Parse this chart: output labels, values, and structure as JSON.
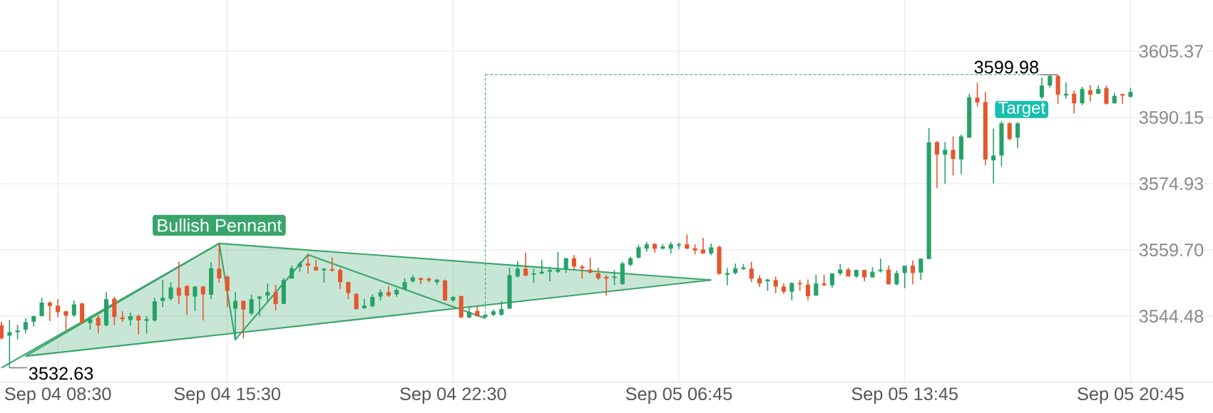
{
  "chart_data": {
    "type": "candlestick",
    "categories": [
      null,
      null,
      null,
      null,
      null,
      null,
      null,
      "Sep 04 08:30",
      null,
      null,
      null,
      null,
      null,
      null,
      null,
      null,
      null,
      null,
      null,
      null,
      null,
      null,
      null,
      null,
      null,
      null,
      null,
      null,
      "Sep 04 15:30",
      null,
      null,
      null,
      null,
      null,
      null,
      null,
      null,
      null,
      null,
      null,
      null,
      null,
      null,
      null,
      null,
      null,
      null,
      null,
      null,
      null,
      null,
      null,
      null,
      null,
      null,
      null,
      "Sep 04 22:30",
      null,
      null,
      null,
      null,
      null,
      null,
      null,
      null,
      null,
      null,
      null,
      null,
      null,
      null,
      null,
      null,
      null,
      null,
      null,
      null,
      null,
      null,
      null,
      null,
      null,
      null,
      null,
      "Sep 05 06:45",
      null,
      null,
      null,
      null,
      null,
      null,
      null,
      null,
      null,
      null,
      null,
      null,
      null,
      null,
      null,
      null,
      null,
      null,
      null,
      null,
      null,
      null,
      null,
      null,
      null,
      null,
      null,
      "Sep 05 13:45",
      null,
      null,
      null,
      null,
      null,
      null,
      null,
      null,
      null,
      null,
      null,
      null,
      null,
      null,
      null,
      null,
      null,
      null,
      null,
      null,
      null,
      null,
      null,
      null,
      null,
      null,
      null,
      "Sep 05 20:45"
    ],
    "ohlc": [
      [
        3542.4,
        3543.2,
        3539.1,
        3539.4
      ],
      [
        3540.0,
        3543.6,
        3532.63,
        3540.8
      ],
      [
        3540.8,
        3542.5,
        3539.1,
        3541.2
      ],
      [
        3541.4,
        3544.0,
        3540.5,
        3543.1
      ],
      [
        3543.2,
        3544.6,
        3542.1,
        3544.5
      ],
      [
        3544.5,
        3548.7,
        3544.5,
        3547.6
      ],
      [
        3547.6,
        3547.9,
        3543.4,
        3546.8
      ],
      [
        3546.9,
        3548.4,
        3544.3,
        3545.4
      ],
      [
        3545.6,
        3545.7,
        3541.3,
        3544.6
      ],
      [
        3544.7,
        3548.1,
        3544.3,
        3547.2
      ],
      [
        3547.4,
        3547.6,
        3542.7,
        3543.0
      ],
      [
        3542.9,
        3544.3,
        3541.4,
        3543.8
      ],
      [
        3544.1,
        3544.7,
        3540.5,
        3542.3
      ],
      [
        3542.4,
        3550.0,
        3542.1,
        3548.4
      ],
      [
        3548.5,
        3549.0,
        3542.4,
        3544.3
      ],
      [
        3544.2,
        3545.6,
        3543.2,
        3543.8
      ],
      [
        3543.6,
        3545.3,
        3542.3,
        3544.5
      ],
      [
        3544.5,
        3544.9,
        3540.3,
        3543.5
      ],
      [
        3543.5,
        3544.5,
        3540.5,
        3543.7
      ],
      [
        3543.5,
        3548.7,
        3543.2,
        3547.9
      ],
      [
        3548.0,
        3552.8,
        3546.5,
        3548.7
      ],
      [
        3548.5,
        3552.3,
        3548.1,
        3551.1
      ],
      [
        3551.0,
        3557.0,
        3547.3,
        3549.2
      ],
      [
        3551.4,
        3551.7,
        3544.7,
        3549.2
      ],
      [
        3549.0,
        3551.4,
        3545.6,
        3551.3
      ],
      [
        3551.3,
        3551.4,
        3543.5,
        3549.5
      ],
      [
        3549.4,
        3556.9,
        3548.4,
        3555.5
      ],
      [
        3555.4,
        3561.0,
        3552.2,
        3553.2
      ],
      [
        3553.6,
        3553.9,
        3546.5,
        3550.3
      ],
      [
        3546.2,
        3550.0,
        3538.9,
        3548.0
      ],
      [
        3548.0,
        3548.1,
        3539.4,
        3546.0
      ],
      [
        3545.1,
        3549.4,
        3544.7,
        3548.4
      ],
      [
        3548.5,
        3549.2,
        3544.5,
        3549.0
      ],
      [
        3549.2,
        3552.0,
        3547.6,
        3550.0
      ],
      [
        3550.0,
        3551.7,
        3545.8,
        3547.3
      ],
      [
        3547.3,
        3553.3,
        3547.3,
        3552.8
      ],
      [
        3553.1,
        3556.1,
        3553.1,
        3555.5
      ],
      [
        3555.8,
        3557.1,
        3554.7,
        3556.6
      ],
      [
        3556.6,
        3558.8,
        3554.3,
        3556.1
      ],
      [
        3555.8,
        3557.4,
        3555.0,
        3555.0
      ],
      [
        3555.0,
        3555.5,
        3552.2,
        3555.4
      ],
      [
        3555.2,
        3558.0,
        3554.7,
        3555.0
      ],
      [
        3555.1,
        3555.5,
        3550.7,
        3552.3
      ],
      [
        3552.3,
        3552.5,
        3548.4,
        3549.8
      ],
      [
        3549.6,
        3549.8,
        3546.0,
        3546.1
      ],
      [
        3546.3,
        3548.5,
        3546.2,
        3546.9
      ],
      [
        3546.8,
        3549.5,
        3546.5,
        3548.9
      ],
      [
        3549.0,
        3550.7,
        3548.1,
        3550.0
      ],
      [
        3550.0,
        3551.4,
        3548.9,
        3549.2
      ],
      [
        3549.5,
        3550.9,
        3548.9,
        3550.5
      ],
      [
        3550.7,
        3553.2,
        3550.5,
        3552.3
      ],
      [
        3552.5,
        3553.9,
        3552.2,
        3553.4
      ],
      [
        3553.2,
        3553.4,
        3551.8,
        3552.8
      ],
      [
        3553.1,
        3553.4,
        3552.2,
        3552.7
      ],
      [
        3552.3,
        3552.9,
        3551.7,
        3552.9
      ],
      [
        3552.7,
        3552.9,
        3548.0,
        3548.1
      ],
      [
        3548.1,
        3549.1,
        3547.8,
        3548.9
      ],
      [
        3549.1,
        3549.2,
        3544.0,
        3544.2
      ],
      [
        3544.2,
        3546.8,
        3544.0,
        3545.4
      ],
      [
        3545.7,
        3546.8,
        3544.3,
        3544.5
      ],
      [
        3544.3,
        3545.0,
        3544.0,
        3544.8
      ],
      [
        3544.8,
        3546.0,
        3544.5,
        3545.6
      ],
      [
        3544.8,
        3547.9,
        3544.6,
        3546.1
      ],
      [
        3546.2,
        3555.6,
        3546.2,
        3553.9
      ],
      [
        3553.6,
        3557.1,
        3553.4,
        3555.4
      ],
      [
        3555.4,
        3559.1,
        3553.6,
        3553.8
      ],
      [
        3554.0,
        3555.4,
        3552.1,
        3554.3
      ],
      [
        3554.3,
        3557.4,
        3554.1,
        3554.7
      ],
      [
        3554.7,
        3555.8,
        3552.5,
        3555.1
      ],
      [
        3554.7,
        3559.2,
        3554.4,
        3555.2
      ],
      [
        3555.2,
        3557.9,
        3554.4,
        3557.8
      ],
      [
        3557.8,
        3558.5,
        3555.2,
        3555.9
      ],
      [
        3555.9,
        3556.3,
        3553.1,
        3555.5
      ],
      [
        3555.2,
        3557.9,
        3554.3,
        3554.5
      ],
      [
        3554.3,
        3555.6,
        3552.8,
        3553.2
      ],
      [
        3553.4,
        3553.9,
        3549.2,
        3553.2
      ],
      [
        3553.3,
        3555.1,
        3551.6,
        3553.6
      ],
      [
        3551.9,
        3557.0,
        3551.7,
        3556.6
      ],
      [
        3556.3,
        3558.1,
        3555.9,
        3557.8
      ],
      [
        3557.9,
        3560.9,
        3557.8,
        3560.3
      ],
      [
        3560.0,
        3561.5,
        3559.3,
        3561.0
      ],
      [
        3561.1,
        3561.2,
        3559.1,
        3560.0
      ],
      [
        3560.0,
        3561.1,
        3559.8,
        3560.5
      ],
      [
        3560.0,
        3561.5,
        3558.9,
        3561.0
      ],
      [
        3560.7,
        3561.4,
        3559.9,
        3561.0
      ],
      [
        3561.0,
        3563.3,
        3559.9,
        3560.0
      ],
      [
        3560.1,
        3561.0,
        3558.7,
        3559.6
      ],
      [
        3559.8,
        3562.5,
        3558.8,
        3558.9
      ],
      [
        3558.9,
        3561.2,
        3558.5,
        3560.3
      ],
      [
        3560.4,
        3560.7,
        3554.0,
        3554.2
      ],
      [
        3554.0,
        3555.5,
        3551.6,
        3554.4
      ],
      [
        3554.4,
        3556.6,
        3554.1,
        3555.5
      ],
      [
        3555.4,
        3556.5,
        3555.1,
        3555.6
      ],
      [
        3555.4,
        3557.0,
        3552.3,
        3553.1
      ],
      [
        3553.2,
        3553.9,
        3551.2,
        3552.0
      ],
      [
        3552.5,
        3553.1,
        3550.3,
        3552.9
      ],
      [
        3552.8,
        3553.6,
        3549.8,
        3551.3
      ],
      [
        3551.3,
        3552.0,
        3549.6,
        3550.1
      ],
      [
        3550.1,
        3552.3,
        3548.1,
        3552.1
      ],
      [
        3552.1,
        3552.8,
        3550.3,
        3551.8
      ],
      [
        3551.7,
        3552.9,
        3548.1,
        3549.1
      ],
      [
        3549.2,
        3554.0,
        3549.2,
        3552.0
      ],
      [
        3552.0,
        3554.0,
        3551.4,
        3551.6
      ],
      [
        3551.6,
        3554.4,
        3551.0,
        3554.3
      ],
      [
        3554.3,
        3556.5,
        3553.9,
        3555.2
      ],
      [
        3555.2,
        3555.6,
        3553.6,
        3553.6
      ],
      [
        3553.6,
        3555.2,
        3553.3,
        3555.1
      ],
      [
        3555.1,
        3555.1,
        3552.5,
        3553.4
      ],
      [
        3553.4,
        3555.8,
        3553.3,
        3554.7
      ],
      [
        3554.9,
        3557.7,
        3554.5,
        3555.1
      ],
      [
        3555.2,
        3556.1,
        3551.8,
        3551.8
      ],
      [
        3551.8,
        3555.0,
        3551.6,
        3554.4
      ],
      [
        3554.4,
        3556.1,
        3550.9,
        3556.1
      ],
      [
        3556.1,
        3557.3,
        3551.8,
        3554.4
      ],
      [
        3554.5,
        3557.8,
        3552.8,
        3557.7
      ],
      [
        3557.6,
        3587.7,
        3557.6,
        3584.4
      ],
      [
        3584.5,
        3584.7,
        3573.9,
        3581.6
      ],
      [
        3581.6,
        3584.5,
        3574.9,
        3582.7
      ],
      [
        3582.7,
        3585.8,
        3576.8,
        3580.6
      ],
      [
        3580.5,
        3586.2,
        3577.1,
        3585.8
      ],
      [
        3585.5,
        3595.6,
        3585.5,
        3594.8
      ],
      [
        3594.7,
        3598.1,
        3592.7,
        3593.6
      ],
      [
        3593.7,
        3596.0,
        3579.2,
        3580.5
      ],
      [
        3580.3,
        3587.6,
        3575.0,
        3581.4
      ],
      [
        3581.4,
        3589.3,
        3578.9,
        3588.8
      ],
      [
        3588.8,
        3589.1,
        3584.9,
        3585.2
      ],
      [
        3585.5,
        3589.1,
        3583.1,
        3588.8
      ],
      null,
      null,
      [
        3594.8,
        3599.3,
        3594.4,
        3597.5
      ],
      [
        3597.5,
        3599.9,
        3597.0,
        3599.7
      ],
      [
        3599.7,
        3599.98,
        3593.3,
        3595.4
      ],
      [
        3595.2,
        3598.2,
        3594.5,
        3595.6
      ],
      [
        3595.6,
        3596.4,
        3591.1,
        3593.4
      ],
      [
        3593.4,
        3597.2,
        3593.0,
        3596.7
      ],
      [
        3596.4,
        3597.6,
        3593.8,
        3595.4
      ],
      [
        3595.6,
        3597.5,
        3595.6,
        3596.7
      ],
      [
        3596.9,
        3597.5,
        3593.1,
        3593.3
      ],
      [
        3593.4,
        3595.8,
        3593.3,
        3595.1
      ],
      [
        3595.4,
        3595.6,
        3593.3,
        3595.3
      ],
      [
        3594.9,
        3597.0,
        3594.7,
        3596.0
      ]
    ],
    "colors": [
      "#e4572e",
      "#26a269",
      "#26a269",
      "#26a269",
      "#26a269",
      "#26a269",
      "#e4572e",
      "#e4572e",
      "#e4572e",
      "#26a269",
      "#e4572e",
      "#26a269",
      "#e4572e",
      "#26a269",
      "#e4572e",
      "#e4572e",
      "#26a269",
      "#e4572e",
      "#26a269",
      "#26a269",
      "#26a269",
      "#26a269",
      "#e4572e",
      "#e4572e",
      "#26a269",
      "#e4572e",
      "#26a269",
      "#e4572e",
      "#e4572e",
      "#26a269",
      "#e4572e",
      "#26a269",
      "#26a269",
      "#26a269",
      "#e4572e",
      "#26a269",
      "#26a269",
      "#26a269",
      "#e4572e",
      "#e4572e",
      "#26a269",
      "#e4572e",
      "#e4572e",
      "#e4572e",
      "#e4572e",
      "#26a269",
      "#26a269",
      "#26a269",
      "#e4572e",
      "#26a269",
      "#26a269",
      "#26a269",
      "#e4572e",
      "#e4572e",
      "#26a269",
      "#e4572e",
      "#26a269",
      "#e4572e",
      "#26a269",
      "#e4572e",
      "#26a269",
      "#26a269",
      "#26a269",
      "#26a269",
      "#26a269",
      "#e4572e",
      "#26a269",
      "#26a269",
      "#26a269",
      "#26a269",
      "#26a269",
      "#e4572e",
      "#e4572e",
      "#e4572e",
      "#e4572e",
      "#e4572e",
      "#26a269",
      "#26a269",
      "#26a269",
      "#26a269",
      "#26a269",
      "#e4572e",
      "#26a269",
      "#26a269",
      "#26a269",
      "#e4572e",
      "#e4572e",
      "#e4572e",
      "#26a269",
      "#e4572e",
      "#26a269",
      "#26a269",
      "#26a269",
      "#e4572e",
      "#e4572e",
      "#26a269",
      "#e4572e",
      "#e4572e",
      "#26a269",
      "#e4572e",
      "#e4572e",
      "#26a269",
      "#e4572e",
      "#26a269",
      "#26a269",
      "#e4572e",
      "#26a269",
      "#e4572e",
      "#26a269",
      "#26a269",
      "#e4572e",
      "#26a269",
      "#26a269",
      "#e4572e",
      "#26a269",
      "#26a269",
      "#e4572e",
      "#26a269",
      "#e4572e",
      "#26a269",
      "#26a269",
      "#e4572e",
      "#e4572e",
      "#26a269",
      "#26a269",
      "#e4572e",
      "#26a269",
      null,
      null,
      "#26a269",
      "#26a269",
      "#e4572e",
      "#26a269",
      "#e4572e",
      "#26a269",
      "#e4572e",
      "#26a269",
      "#e4572e",
      "#26a269",
      "#e4572e",
      "#26a269"
    ],
    "series": [
      {
        "type": "line",
        "color": "#3aa56b",
        "values": [
          3532.6,
          null,
          null,
          null,
          null,
          null,
          null,
          null,
          null,
          null,
          null,
          null,
          null,
          null,
          null,
          null,
          null,
          null,
          null,
          null,
          null,
          null,
          null,
          null,
          null,
          null,
          null,
          3561.2,
          null,
          3539.1,
          null,
          null,
          null,
          null,
          null,
          null,
          null,
          null,
          3558.6,
          null,
          null,
          null,
          null,
          null,
          null,
          null,
          null,
          null,
          null,
          null,
          null,
          null,
          null,
          null,
          null,
          null,
          null,
          null,
          null,
          null,
          3544.0,
          null,
          null,
          null,
          null,
          null,
          null,
          null,
          null,
          null,
          null,
          null,
          null,
          null,
          null,
          null,
          null,
          null,
          null,
          null,
          null,
          null,
          null,
          null,
          null,
          null,
          null,
          null,
          null,
          null,
          null,
          null,
          null,
          null,
          null,
          null,
          null,
          null,
          null,
          null,
          null,
          null,
          null,
          null,
          null,
          null,
          null,
          null,
          null,
          null,
          null,
          null,
          null,
          null,
          null,
          null,
          null,
          null,
          null,
          null,
          null,
          null,
          null,
          null,
          null,
          null,
          null,
          null,
          null,
          null,
          null,
          null,
          null,
          null,
          null,
          null,
          null,
          null,
          null,
          null,
          null
        ]
      },
      {
        "type": "line",
        "color": "#3aa56b",
        "values": [
          null,
          null,
          null,
          3535.3,
          null,
          null,
          null,
          null,
          null,
          null,
          null,
          null,
          null,
          null,
          null,
          null,
          null,
          null,
          null,
          null,
          null,
          null,
          null,
          null,
          null,
          null,
          null,
          3561.2,
          null,
          null,
          null,
          null,
          null,
          null,
          null,
          null,
          null,
          null,
          null,
          null,
          null,
          null,
          null,
          null,
          null,
          null,
          null,
          null,
          null,
          null,
          null,
          null,
          null,
          null,
          null,
          null,
          null,
          null,
          null,
          null,
          null,
          null,
          null,
          null,
          null,
          null,
          null,
          null,
          null,
          null,
          null,
          null,
          null,
          null,
          null,
          null,
          null,
          null,
          null,
          null,
          null,
          null,
          null,
          null,
          null,
          null,
          null,
          null,
          3552.8,
          null,
          null,
          null,
          null,
          null,
          null,
          null,
          null,
          null,
          null,
          null,
          null,
          null,
          null,
          null,
          null,
          null,
          null,
          null,
          null,
          null,
          null,
          null,
          null,
          null,
          null,
          null,
          null,
          null,
          null,
          null,
          null,
          null,
          null,
          null,
          null,
          null,
          null,
          null,
          null,
          null,
          null,
          null,
          null,
          null,
          null,
          null,
          null,
          null,
          null,
          null,
          null
        ],
        "upper": [
          null,
          null,
          null,
          3535.3,
          null,
          null,
          null,
          null,
          null,
          null,
          null,
          null,
          null,
          null,
          null,
          null,
          null,
          null,
          null,
          null,
          null,
          null,
          null,
          null,
          null,
          null,
          null,
          3561.2,
          null,
          null,
          null,
          null,
          null,
          null,
          null,
          null,
          null,
          null,
          null,
          null,
          null,
          null,
          null,
          null,
          null,
          null,
          null,
          null,
          null,
          null,
          null,
          null,
          null,
          null,
          null,
          null,
          null,
          null,
          null,
          null,
          null,
          null,
          null,
          null,
          null,
          null,
          null,
          null,
          null,
          null,
          null,
          null,
          null,
          null,
          null,
          null,
          null,
          null,
          null,
          null,
          null,
          null,
          null,
          null,
          null,
          null,
          null,
          null,
          3552.8,
          null,
          null,
          null,
          null,
          null,
          null,
          null,
          null,
          null,
          null,
          null,
          null,
          null,
          null,
          null,
          null,
          null,
          null,
          null,
          null,
          null,
          null,
          null,
          null,
          null,
          null,
          null,
          null,
          null,
          null,
          null,
          null,
          null,
          null,
          null,
          null,
          null,
          null,
          null,
          null,
          null,
          null,
          null,
          null,
          null,
          null,
          null,
          null,
          null,
          null,
          null,
          null
        ],
        "lower": [
          null,
          null,
          null,
          3535.3,
          null,
          null,
          null,
          null,
          null,
          null,
          null,
          null,
          null,
          null,
          null,
          null,
          null,
          null,
          null,
          null,
          null,
          null,
          null,
          null,
          null,
          null,
          null,
          3540.2,
          null,
          null,
          null,
          null,
          null,
          null,
          null,
          null,
          null,
          null,
          null,
          null,
          null,
          null,
          null,
          null,
          null,
          null,
          null,
          null,
          null,
          null,
          null,
          null,
          null,
          null,
          null,
          null,
          null,
          null,
          null,
          null,
          null,
          null,
          null,
          null,
          null,
          null,
          null,
          null,
          null,
          null,
          null,
          null,
          null,
          null,
          null,
          null,
          null,
          null,
          null,
          null,
          null,
          null,
          null,
          null,
          null,
          null,
          null,
          null,
          3552.8,
          null,
          null,
          null,
          null,
          null,
          null,
          null,
          null,
          null,
          null,
          null,
          null,
          null,
          null,
          null,
          null,
          null,
          null,
          null,
          null,
          null,
          null,
          null,
          null,
          null,
          null,
          null,
          null,
          null,
          null,
          null,
          null,
          null,
          null,
          null,
          null,
          null,
          null,
          null,
          null,
          null,
          null,
          null,
          null,
          null,
          null,
          null,
          null,
          null,
          null,
          null,
          null
        ]
      },
      {
        "type": "line",
        "color": "#3aa56b",
        "line_style": "dashed",
        "values": [
          null,
          null,
          null,
          null,
          null,
          null,
          null,
          null,
          null,
          null,
          null,
          null,
          null,
          null,
          null,
          null,
          null,
          null,
          null,
          null,
          null,
          null,
          null,
          null,
          null,
          null,
          null,
          null,
          null,
          null,
          null,
          null,
          null,
          null,
          null,
          null,
          null,
          null,
          null,
          null,
          null,
          null,
          null,
          null,
          null,
          null,
          null,
          null,
          null,
          null,
          null,
          null,
          null,
          null,
          null,
          null,
          null,
          null,
          null,
          null,
          3600.0,
          null,
          null,
          null,
          null,
          null,
          null,
          null,
          null,
          null,
          null,
          null,
          null,
          null,
          null,
          null,
          null,
          null,
          null,
          null,
          null,
          null,
          null,
          null,
          null,
          null,
          null,
          null,
          null,
          null,
          null,
          null,
          null,
          null,
          null,
          null,
          null,
          null,
          null,
          null,
          null,
          null,
          null,
          null,
          null,
          null,
          null,
          null,
          null,
          null,
          null,
          null,
          null,
          null,
          null,
          null,
          null,
          null,
          null,
          null,
          null,
          null,
          null,
          null,
          null,
          null,
          null,
          null,
          null,
          3600.0,
          null,
          null,
          null,
          null,
          null,
          null,
          null,
          null,
          null,
          null,
          null
        ],
        "errors": [
          null,
          null,
          null,
          null,
          null,
          null,
          null,
          null,
          null,
          null,
          null,
          null,
          null,
          null,
          null,
          null,
          null,
          null,
          null,
          null,
          null,
          null,
          null,
          null,
          null,
          null,
          null,
          null,
          null,
          null,
          null,
          null,
          null,
          null,
          null,
          null,
          null,
          null,
          null,
          null,
          null,
          null,
          null,
          null,
          null,
          null,
          null,
          null,
          null,
          null,
          null,
          null,
          null,
          null,
          null,
          null,
          null,
          null,
          null,
          null,
          [
            3544.0,
            3600.0
          ],
          null,
          null,
          null,
          null,
          null,
          null,
          null,
          null,
          null,
          null,
          null,
          null,
          null,
          null,
          null,
          null,
          null,
          null,
          null,
          null,
          null,
          null,
          null,
          null,
          null,
          null,
          null,
          null,
          null,
          null,
          null,
          null,
          null,
          null,
          null,
          null,
          null,
          null,
          null,
          null,
          null,
          null,
          null,
          null,
          null,
          null,
          null,
          null,
          null,
          null,
          null,
          null,
          null,
          null,
          null,
          null,
          null,
          null,
          null,
          null,
          null,
          null,
          null,
          null,
          null,
          null,
          null,
          null,
          null,
          null,
          null,
          null,
          null,
          null,
          null,
          null,
          null,
          null,
          null,
          null
        ]
      }
    ],
    "annotations": [
      "Bullish Pennant",
      "Target",
      "3532.63",
      "3599.98"
    ],
    "ylim": [
      3529.27,
      3617.15
    ],
    "yticks": [
      3544.48,
      {
        "value": 3559.7,
        "label": "3559.70"
      },
      3574.93,
      {
        "value": 3590.15,
        "label": "3590.15"
      },
      3605.37
    ],
    "grid": true
  }
}
